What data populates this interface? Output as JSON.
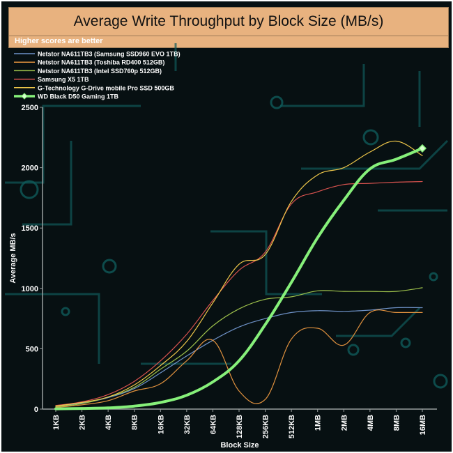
{
  "chart_data": {
    "type": "line",
    "title": "Average Write Throughput by Block Size (MB/s)",
    "subtitle": "Higher scores are better",
    "xlabel": "Block Size",
    "ylabel": "Average MB/s",
    "ylim": [
      0,
      2500
    ],
    "yticks": [
      0,
      500,
      1000,
      1500,
      2000,
      2500
    ],
    "categories": [
      "1KB",
      "2KB",
      "4KB",
      "8KB",
      "16KB",
      "32KB",
      "64KB",
      "128KB",
      "256KB",
      "512KB",
      "1MB",
      "2MB",
      "4MB",
      "8MB",
      "16MB"
    ],
    "legend_position": "top-left",
    "grid": false,
    "series": [
      {
        "name": "Netstor NA611TB3 (Samsung SSD960 EVO 1TB)",
        "color": "#6f93c9",
        "width": 1.2,
        "values": [
          25,
          50,
          95,
          170,
          300,
          440,
          570,
          680,
          750,
          800,
          815,
          810,
          820,
          840,
          840
        ]
      },
      {
        "name": "Netstor NA611TB3 (Toshiba RD400 512GB)",
        "color": "#e0913e",
        "width": 1.2,
        "values": [
          15,
          35,
          70,
          150,
          210,
          400,
          570,
          150,
          80,
          580,
          670,
          530,
          800,
          800,
          800
        ]
      },
      {
        "name": "Netstor NA611TB3 (Intel SSD760p 512GB)",
        "color": "#9dc04b",
        "width": 1.2,
        "values": [
          20,
          45,
          100,
          180,
          330,
          480,
          690,
          830,
          910,
          930,
          980,
          975,
          975,
          975,
          1005
        ]
      },
      {
        "name": "Samsung X5 1TB",
        "color": "#d9534f",
        "width": 1.2,
        "values": [
          30,
          60,
          120,
          230,
          400,
          620,
          900,
          1150,
          1300,
          1700,
          1800,
          1860,
          1870,
          1880,
          1885
        ]
      },
      {
        "name": "G-Technology G-Drive mobile Pro SSD 500GB",
        "color": "#f0c84a",
        "width": 1.2,
        "values": [
          25,
          55,
          100,
          200,
          360,
          560,
          880,
          1200,
          1280,
          1720,
          1940,
          2000,
          2130,
          2220,
          2100
        ]
      },
      {
        "name": "WD Black D50 Gaming 1TB",
        "color": "#86f07a",
        "width": 4,
        "marker": "diamond",
        "values": [
          2,
          5,
          10,
          25,
          55,
          115,
          225,
          400,
          700,
          1050,
          1420,
          1730,
          1990,
          2070,
          2160
        ]
      }
    ]
  }
}
